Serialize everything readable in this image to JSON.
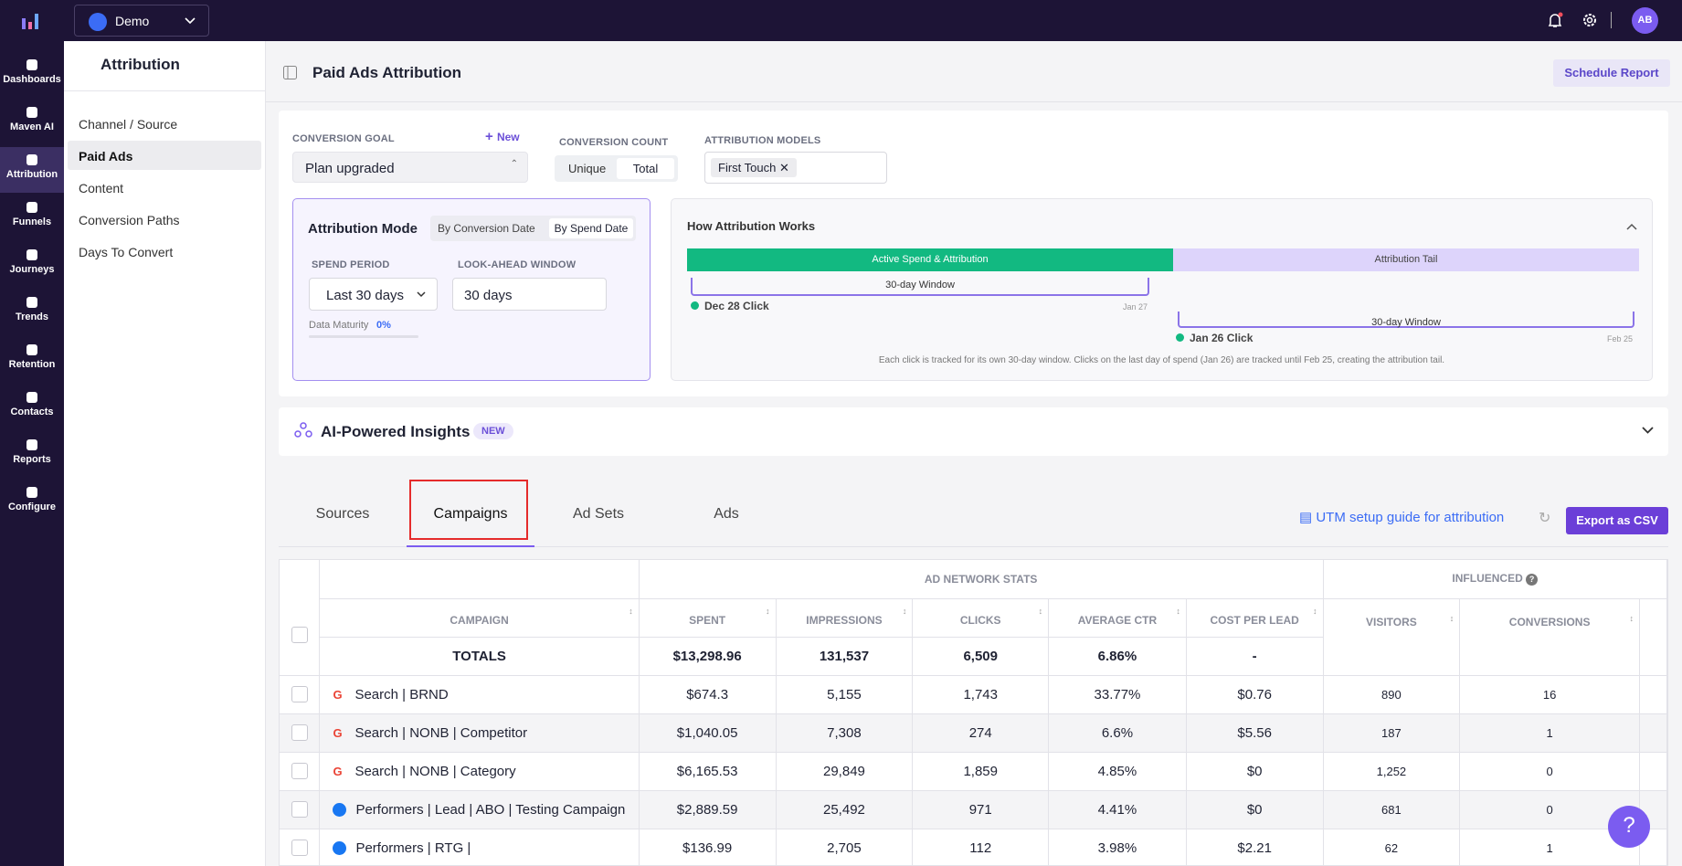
{
  "app": {
    "workspace": "Demo",
    "user_initials": "AB"
  },
  "nav": {
    "items": [
      "Dashboards",
      "Maven AI",
      "Attribution",
      "Funnels",
      "Journeys",
      "Trends",
      "Retention",
      "Contacts",
      "Reports",
      "Configure"
    ],
    "active": "Attribution"
  },
  "subnav": {
    "title": "Attribution",
    "items": [
      "Channel / Source",
      "Paid Ads",
      "Content",
      "Conversion Paths",
      "Days To Convert"
    ],
    "active": "Paid Ads"
  },
  "page": {
    "title": "Paid Ads Attribution",
    "schedule_button": "Schedule Report"
  },
  "config": {
    "conversion_goal_label": "CONVERSION GOAL",
    "new_button": "New",
    "conversion_goal_value": "Plan upgraded",
    "conversion_count_label": "CONVERSION COUNT",
    "count_options": [
      "Unique",
      "Total"
    ],
    "attribution_models_label": "ATTRIBUTION MODELS",
    "model_chip": "First Touch",
    "mode_title": "Attribution Mode",
    "mode_options": [
      "By Conversion Date",
      "By Spend Date"
    ],
    "spend_period_label": "SPEND PERIOD",
    "spend_period_value": "Last 30 days",
    "lookahead_label": "LOOK-AHEAD WINDOW",
    "lookahead_value": "30 days",
    "data_maturity_label": "Data Maturity",
    "data_maturity_value": "0%"
  },
  "how": {
    "title": "How Attribution Works",
    "active_label": "Active Spend & Attribution",
    "tail_label": "Attribution Tail",
    "window1": "30-day Window",
    "click1": "Dec 28 Click",
    "end1": "Jan 27",
    "window2": "30-day Window",
    "click2": "Jan 26 Click",
    "end2": "Feb 25",
    "note": "Each click is tracked for its own 30-day window. Clicks on the last day of spend (Jan 26) are tracked until Feb 25, creating the attribution tail."
  },
  "insights": {
    "title": "AI-Powered Insights",
    "badge": "NEW"
  },
  "tabs": {
    "items": [
      "Sources",
      "Campaigns",
      "Ad Sets",
      "Ads"
    ],
    "active": "Campaigns",
    "utm_link": "UTM setup guide for attribution",
    "export_button": "Export as CSV"
  },
  "table": {
    "group_headers": [
      "AD NETWORK STATS",
      "INFLUENCED"
    ],
    "columns": [
      "CAMPAIGN",
      "SPENT",
      "IMPRESSIONS",
      "CLICKS",
      "AVERAGE CTR",
      "COST PER LEAD",
      "VISITORS",
      "CONVERSIONS"
    ],
    "totals": [
      "TOTALS",
      "$13,298.96",
      "131,537",
      "6,509",
      "6.86%",
      "-"
    ],
    "rows": [
      [
        "Search | BRND",
        "$674.3",
        "5,155",
        "1,743",
        "33.77%",
        "$0.76",
        "890",
        "16"
      ],
      [
        "Search | NONB | Competitor",
        "$1,040.05",
        "7,308",
        "274",
        "6.6%",
        "$5.56",
        "187",
        "1"
      ],
      [
        "Search | NONB | Category",
        "$6,165.53",
        "29,849",
        "1,859",
        "4.85%",
        "$0",
        "1,252",
        "0"
      ],
      [
        "Performers | Lead | ABO | Testing Campaign",
        "$2,889.59",
        "25,492",
        "971",
        "4.41%",
        "$0",
        "681",
        "0"
      ],
      [
        "Performers | RTG |",
        "$136.99",
        "2,705",
        "112",
        "3.98%",
        "$2.21",
        "62",
        "1"
      ]
    ]
  }
}
